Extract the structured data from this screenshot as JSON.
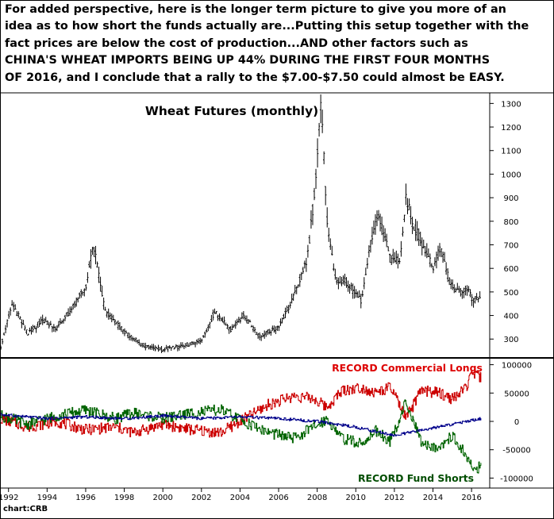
{
  "commentary": [
    "For added perspective, here is the longer term picture to give you more of an",
    "idea as to how short the funds actually are...Putting this setup together with the",
    "fact prices are below the cost of production...AND other factors such as",
    "CHINA'S WHEAT IMPORTS BEING UP 44% DURING THE FIRST FOUR MONTHS",
    "OF 2016, and I conclude that a rally to the $7.00-$7.50 could almost be EASY."
  ],
  "source": "chart:CRB",
  "colors": {
    "price_bars": "#000000",
    "commercial_longs": "#cc0000",
    "fund_shorts": "#006400",
    "small_specs": "#00008b",
    "annotation_commercial": "#dd0000",
    "annotation_fund": "#004d00"
  },
  "chart_data": [
    {
      "type": "bar",
      "style": "ohlc-monthly",
      "title": "Wheat Futures (monthly)",
      "x_axis": {
        "type": "date",
        "range": [
          1991.6,
          2016.9
        ]
      },
      "y_axis": {
        "side": "right",
        "range": [
          220,
          1345
        ],
        "ticks": [
          300,
          400,
          500,
          600,
          700,
          800,
          900,
          1000,
          1100,
          1200,
          1300
        ]
      },
      "grid": false,
      "series": [
        {
          "values": [
            {
              "x": 1991.6,
              "y": 270
            },
            {
              "x": 1992.2,
              "y": 450
            },
            {
              "x": 1993.0,
              "y": 320
            },
            {
              "x": 1993.8,
              "y": 380
            },
            {
              "x": 1994.5,
              "y": 345
            },
            {
              "x": 1995.3,
              "y": 430
            },
            {
              "x": 1996.0,
              "y": 520
            },
            {
              "x": 1996.4,
              "y": 700
            },
            {
              "x": 1997.0,
              "y": 420
            },
            {
              "x": 1998.0,
              "y": 330
            },
            {
              "x": 1999.0,
              "y": 270
            },
            {
              "x": 2000.0,
              "y": 255
            },
            {
              "x": 2001.0,
              "y": 270
            },
            {
              "x": 2002.0,
              "y": 290
            },
            {
              "x": 2002.7,
              "y": 420
            },
            {
              "x": 2003.5,
              "y": 340
            },
            {
              "x": 2004.2,
              "y": 400
            },
            {
              "x": 2005.0,
              "y": 310
            },
            {
              "x": 2006.0,
              "y": 350
            },
            {
              "x": 2006.8,
              "y": 480
            },
            {
              "x": 2007.5,
              "y": 650
            },
            {
              "x": 2007.9,
              "y": 950
            },
            {
              "x": 2008.2,
              "y": 1300
            },
            {
              "x": 2008.5,
              "y": 820
            },
            {
              "x": 2008.9,
              "y": 560
            },
            {
              "x": 2009.5,
              "y": 540
            },
            {
              "x": 2010.3,
              "y": 460
            },
            {
              "x": 2010.8,
              "y": 720
            },
            {
              "x": 2011.2,
              "y": 830
            },
            {
              "x": 2011.8,
              "y": 640
            },
            {
              "x": 2012.3,
              "y": 640
            },
            {
              "x": 2012.6,
              "y": 900
            },
            {
              "x": 2013.0,
              "y": 780
            },
            {
              "x": 2013.6,
              "y": 680
            },
            {
              "x": 2014.0,
              "y": 600
            },
            {
              "x": 2014.4,
              "y": 690
            },
            {
              "x": 2014.9,
              "y": 530
            },
            {
              "x": 2015.4,
              "y": 500
            },
            {
              "x": 2015.8,
              "y": 510
            },
            {
              "x": 2016.0,
              "y": 470
            },
            {
              "x": 2016.5,
              "y": 475
            }
          ]
        }
      ]
    },
    {
      "type": "line",
      "style": "step",
      "x_axis": {
        "type": "date",
        "range": [
          1991.6,
          2016.9
        ],
        "ticks": [
          "1992",
          "1994",
          "1996",
          "1998",
          "2000",
          "2002",
          "2004",
          "2006",
          "2008",
          "2010",
          "2012",
          "2014",
          "2016"
        ]
      },
      "y_axis": {
        "side": "right",
        "range": [
          -112000,
          112000
        ],
        "ticks": [
          100000,
          50000,
          0,
          -50000,
          -100000
        ]
      },
      "grid": false,
      "annotations": [
        "RECORD Commercial Longs",
        "RECORD Fund Shorts"
      ],
      "series": [
        {
          "key": "commercial",
          "values": [
            {
              "x": 1991.6,
              "y": 5000
            },
            {
              "x": 1993.0,
              "y": -10000
            },
            {
              "x": 1994.5,
              "y": 0
            },
            {
              "x": 1996.0,
              "y": -15000
            },
            {
              "x": 1997.5,
              "y": -10000
            },
            {
              "x": 1998.5,
              "y": -20000
            },
            {
              "x": 2000.0,
              "y": -5000
            },
            {
              "x": 2001.5,
              "y": -15000
            },
            {
              "x": 2003.0,
              "y": -20000
            },
            {
              "x": 2004.5,
              "y": 10000
            },
            {
              "x": 2005.5,
              "y": 30000
            },
            {
              "x": 2006.8,
              "y": 45000
            },
            {
              "x": 2007.8,
              "y": 40000
            },
            {
              "x": 2008.5,
              "y": 25000
            },
            {
              "x": 2009.3,
              "y": 55000
            },
            {
              "x": 2010.3,
              "y": 60000
            },
            {
              "x": 2011.0,
              "y": 50000
            },
            {
              "x": 2011.8,
              "y": 60000
            },
            {
              "x": 2012.6,
              "y": 5000
            },
            {
              "x": 2013.4,
              "y": 55000
            },
            {
              "x": 2014.3,
              "y": 50000
            },
            {
              "x": 2015.0,
              "y": 40000
            },
            {
              "x": 2015.6,
              "y": 55000
            },
            {
              "x": 2016.1,
              "y": 85000
            },
            {
              "x": 2016.5,
              "y": 75000
            }
          ]
        },
        {
          "key": "funds",
          "values": [
            {
              "x": 1991.6,
              "y": 10000
            },
            {
              "x": 1993.0,
              "y": -5000
            },
            {
              "x": 1994.5,
              "y": 10000
            },
            {
              "x": 1996.0,
              "y": 20000
            },
            {
              "x": 1997.5,
              "y": 5000
            },
            {
              "x": 1998.5,
              "y": 15000
            },
            {
              "x": 2000.0,
              "y": 5000
            },
            {
              "x": 2001.5,
              "y": 15000
            },
            {
              "x": 2003.0,
              "y": 20000
            },
            {
              "x": 2004.5,
              "y": -5000
            },
            {
              "x": 2005.5,
              "y": -20000
            },
            {
              "x": 2006.8,
              "y": -30000
            },
            {
              "x": 2007.8,
              "y": -10000
            },
            {
              "x": 2008.5,
              "y": 5000
            },
            {
              "x": 2009.3,
              "y": -30000
            },
            {
              "x": 2010.3,
              "y": -40000
            },
            {
              "x": 2011.0,
              "y": -15000
            },
            {
              "x": 2011.8,
              "y": -35000
            },
            {
              "x": 2012.6,
              "y": 35000
            },
            {
              "x": 2013.4,
              "y": -40000
            },
            {
              "x": 2014.3,
              "y": -45000
            },
            {
              "x": 2015.0,
              "y": -25000
            },
            {
              "x": 2015.6,
              "y": -55000
            },
            {
              "x": 2016.1,
              "y": -85000
            },
            {
              "x": 2016.5,
              "y": -80000
            }
          ]
        },
        {
          "key": "small_specs",
          "values": [
            {
              "x": 1991.6,
              "y": 12000
            },
            {
              "x": 1994.0,
              "y": 5000
            },
            {
              "x": 1996.0,
              "y": 8000
            },
            {
              "x": 1998.0,
              "y": 5000
            },
            {
              "x": 2000.0,
              "y": 10000
            },
            {
              "x": 2002.0,
              "y": 5000
            },
            {
              "x": 2004.0,
              "y": 8000
            },
            {
              "x": 2006.0,
              "y": 5000
            },
            {
              "x": 2008.0,
              "y": 0
            },
            {
              "x": 2010.0,
              "y": -10000
            },
            {
              "x": 2012.0,
              "y": -25000
            },
            {
              "x": 2013.5,
              "y": -15000
            },
            {
              "x": 2015.0,
              "y": -5000
            },
            {
              "x": 2016.5,
              "y": 5000
            }
          ]
        }
      ]
    }
  ]
}
